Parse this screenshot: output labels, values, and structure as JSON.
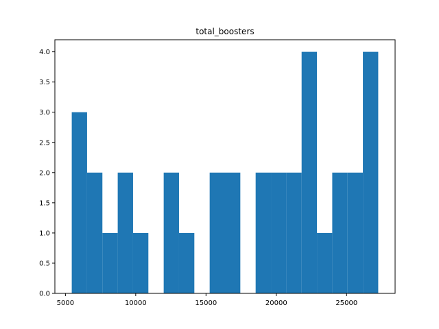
{
  "chart_data": {
    "type": "bar",
    "title": "total_boosters",
    "xlabel": "",
    "ylabel": "",
    "bar_color": "#1f77b4",
    "xlim": [
      4250,
      28450
    ],
    "ylim": [
      0,
      4.2
    ],
    "x_ticks": [
      5000,
      10000,
      15000,
      20000,
      25000
    ],
    "y_ticks": [
      0.0,
      0.5,
      1.0,
      1.5,
      2.0,
      2.5,
      3.0,
      3.5,
      4.0
    ],
    "bins": [
      {
        "start": 5450,
        "end": 6540,
        "count": 3
      },
      {
        "start": 6540,
        "end": 7630,
        "count": 2
      },
      {
        "start": 7630,
        "end": 8720,
        "count": 1
      },
      {
        "start": 8720,
        "end": 9810,
        "count": 2
      },
      {
        "start": 9810,
        "end": 10900,
        "count": 1
      },
      {
        "start": 10900,
        "end": 11990,
        "count": 0
      },
      {
        "start": 11990,
        "end": 13080,
        "count": 2
      },
      {
        "start": 13080,
        "end": 14170,
        "count": 1
      },
      {
        "start": 14170,
        "end": 15260,
        "count": 0
      },
      {
        "start": 15260,
        "end": 16350,
        "count": 2
      },
      {
        "start": 16350,
        "end": 17440,
        "count": 2
      },
      {
        "start": 17440,
        "end": 18530,
        "count": 0
      },
      {
        "start": 18530,
        "end": 19620,
        "count": 2
      },
      {
        "start": 19620,
        "end": 20710,
        "count": 2
      },
      {
        "start": 20710,
        "end": 21800,
        "count": 2
      },
      {
        "start": 21800,
        "end": 22890,
        "count": 4
      },
      {
        "start": 22890,
        "end": 23980,
        "count": 1
      },
      {
        "start": 23980,
        "end": 25070,
        "count": 2
      },
      {
        "start": 25070,
        "end": 26160,
        "count": 2
      },
      {
        "start": 26160,
        "end": 27250,
        "count": 4
      }
    ]
  }
}
